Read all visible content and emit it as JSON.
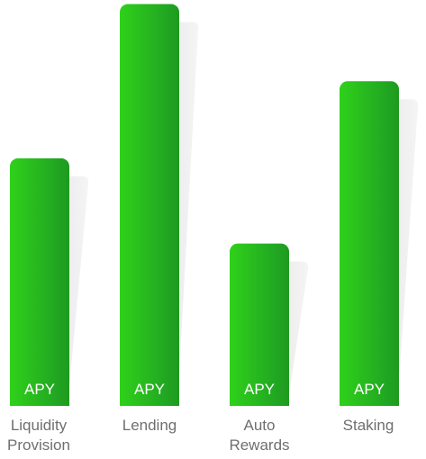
{
  "chart_data": {
    "type": "bar",
    "categories": [
      {
        "lines": [
          "Liquidity",
          "Provision"
        ]
      },
      {
        "lines": [
          "Lending"
        ]
      },
      {
        "lines": [
          "Auto",
          "Rewards"
        ]
      },
      {
        "lines": [
          "Staking"
        ]
      }
    ],
    "category_labels": [
      "Liquidity Provision",
      "Lending",
      "Auto Rewards",
      "Staking"
    ],
    "values": [
      0.61,
      0.99,
      0.4,
      0.8
    ],
    "bar_label": "APY",
    "title": "",
    "xlabel": "",
    "ylabel": "",
    "ylim": [
      0,
      1
    ],
    "grid": false,
    "legend": "none"
  },
  "colors": {
    "bar_top": "#2fd11a",
    "bar_bottom": "#22a822",
    "bar_edge_dark": "#1e9a1e",
    "shadow": "#ececec",
    "bar_text": "#ffffff",
    "label_text": "#6f6f6f",
    "background": "#ffffff"
  }
}
